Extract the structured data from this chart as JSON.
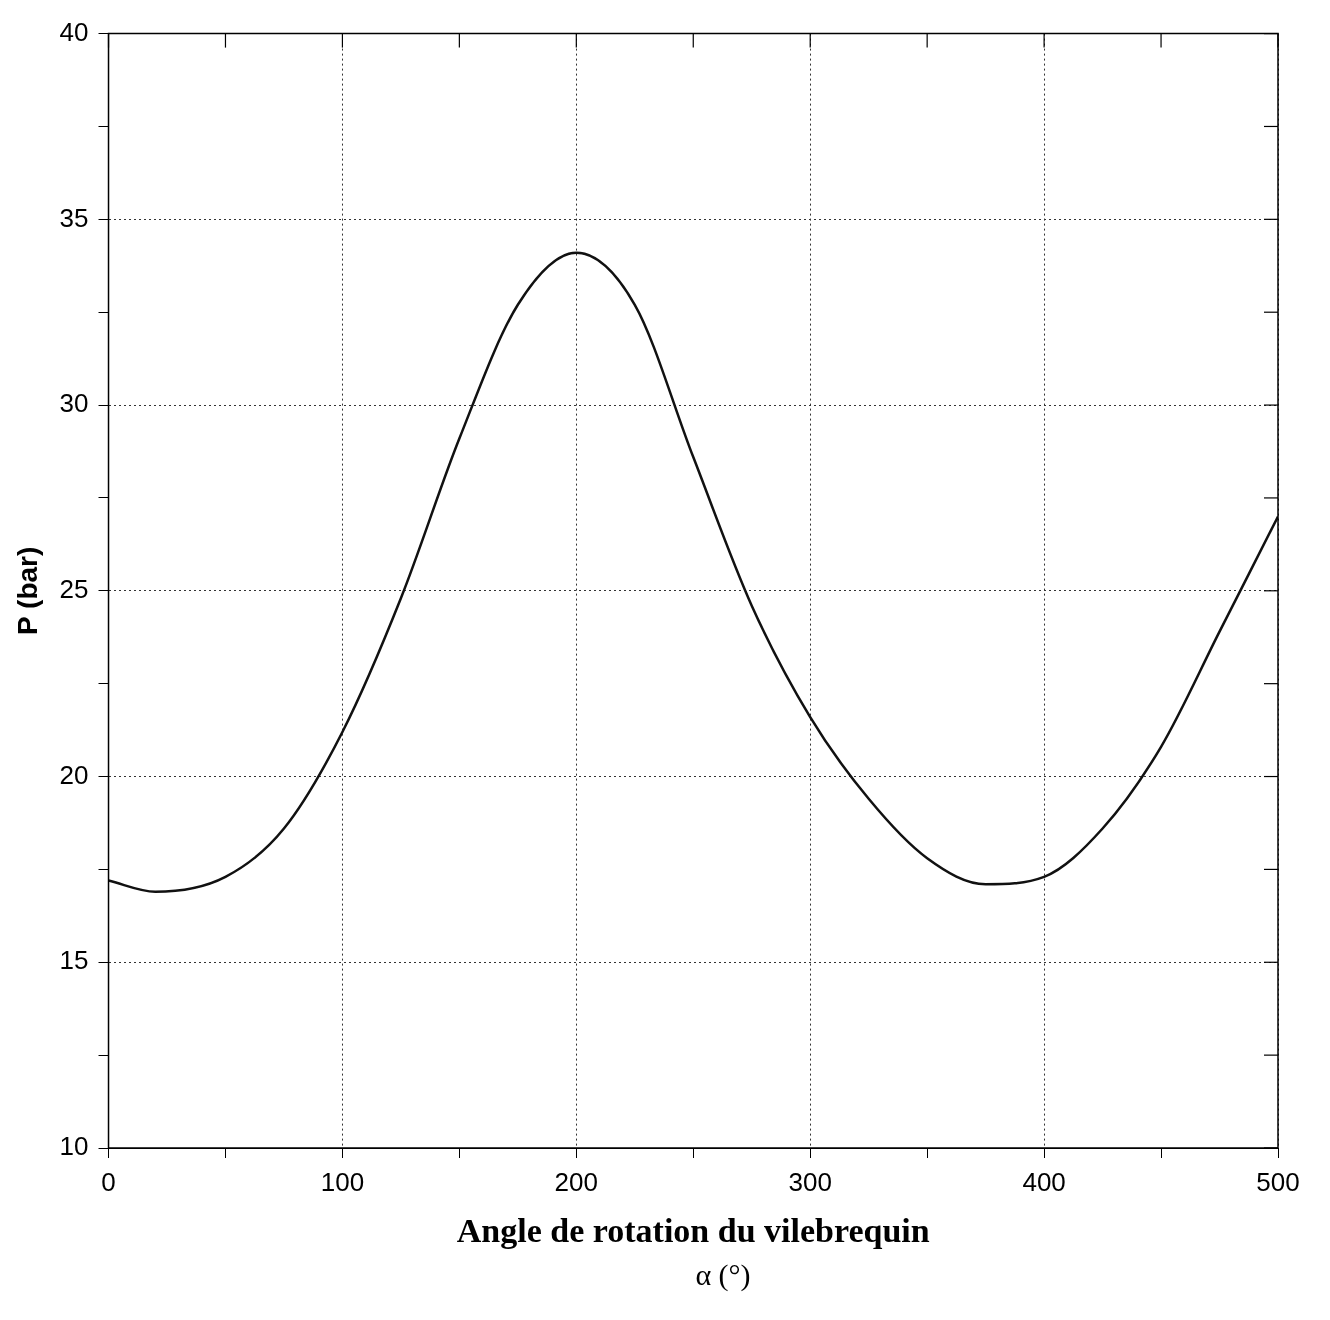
{
  "chart_data": {
    "type": "line",
    "xlabel": "Angle de rotation du vilebrequin",
    "ylabel": "P (bar)",
    "annotations": [
      "α (°)"
    ],
    "x": [
      0,
      20,
      50,
      75,
      100,
      125,
      150,
      175,
      200,
      225,
      250,
      275,
      300,
      325,
      350,
      375,
      400,
      425,
      450,
      475,
      500
    ],
    "series": [
      {
        "color": "#111111",
        "values": [
          17.2,
          16.9,
          17.3,
          18.6,
          21.2,
          24.8,
          29.1,
          32.7,
          34.1,
          32.7,
          28.6,
          24.6,
          21.6,
          19.4,
          17.8,
          17.1,
          17.3,
          18.6,
          20.8,
          23.9,
          27.0
        ]
      }
    ],
    "xlim": [
      0,
      500
    ],
    "ylim": [
      10,
      40
    ],
    "xticks": [
      0,
      {
        "value": 50,
        "label": null
      },
      100,
      {
        "value": 150,
        "label": null
      },
      200,
      {
        "value": 250,
        "label": null
      },
      300,
      {
        "value": 350,
        "label": null
      },
      400,
      {
        "value": 450,
        "label": null
      },
      500
    ],
    "yticks": [
      10,
      {
        "value": 12.5,
        "label": null
      },
      15,
      {
        "value": 17.5,
        "label": null
      },
      20,
      {
        "value": 22.5,
        "label": null
      },
      25,
      {
        "value": 27.5,
        "label": null
      },
      30,
      {
        "value": 32.5,
        "label": null
      },
      35,
      {
        "value": 37.5,
        "label": null
      },
      40
    ],
    "grid": true,
    "marker": "none",
    "line_style": "solid",
    "legend": false
  }
}
